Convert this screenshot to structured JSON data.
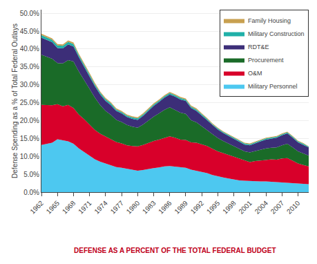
{
  "chart_data": {
    "type": "area",
    "stacked": true,
    "x": [
      1962,
      1963,
      1964,
      1965,
      1966,
      1967,
      1968,
      1969,
      1970,
      1971,
      1972,
      1973,
      1974,
      1975,
      1976,
      1977,
      1978,
      1979,
      1980,
      1981,
      1982,
      1983,
      1984,
      1985,
      1986,
      1987,
      1988,
      1989,
      1990,
      1991,
      1992,
      1993,
      1994,
      1995,
      1996,
      1997,
      1998,
      1999,
      2000,
      2001,
      2002,
      2003,
      2004,
      2005,
      2006,
      2007,
      2008,
      2009,
      2010,
      2011,
      2012
    ],
    "series": [
      {
        "name": "Military Personnel",
        "color": "#4DC8F0",
        "values": [
          13.2,
          13.5,
          13.8,
          14.8,
          14.5,
          14.2,
          13.5,
          12.2,
          11.2,
          10.2,
          9.2,
          8.5,
          8.0,
          7.6,
          7.0,
          6.8,
          6.5,
          6.3,
          6.0,
          6.2,
          6.5,
          6.7,
          6.9,
          7.2,
          7.3,
          7.1,
          6.9,
          6.8,
          6.3,
          6.0,
          5.6,
          5.3,
          4.8,
          4.4,
          4.1,
          3.8,
          3.5,
          3.3,
          3.2,
          3.1,
          3.1,
          3.0,
          3.0,
          2.9,
          2.8,
          2.8,
          2.7,
          2.5,
          2.4,
          2.3,
          2.2
        ]
      },
      {
        "name": "O&M",
        "color": "#D8002A",
        "values": [
          11.2,
          10.8,
          10.5,
          9.8,
          9.5,
          10.2,
          10.0,
          9.5,
          9.2,
          8.7,
          8.2,
          7.8,
          7.5,
          7.2,
          7.0,
          6.8,
          6.6,
          6.6,
          6.8,
          7.0,
          7.3,
          7.6,
          7.8,
          8.0,
          8.3,
          8.1,
          7.8,
          7.8,
          7.6,
          7.8,
          7.8,
          7.6,
          7.3,
          7.0,
          6.8,
          6.6,
          6.3,
          6.0,
          5.6,
          5.3,
          5.6,
          5.8,
          6.0,
          6.3,
          6.3,
          6.6,
          6.8,
          6.3,
          5.6,
          5.3,
          5.0
        ]
      },
      {
        "name": "Procurement",
        "color": "#1A6B28",
        "values": [
          14.0,
          13.5,
          13.0,
          11.5,
          12.0,
          12.5,
          13.0,
          12.0,
          11.0,
          10.0,
          9.0,
          8.0,
          7.2,
          6.8,
          6.2,
          6.0,
          5.7,
          5.4,
          5.2,
          5.7,
          6.2,
          6.8,
          7.3,
          7.8,
          8.1,
          7.8,
          7.5,
          7.3,
          6.2,
          5.7,
          5.0,
          4.4,
          4.0,
          3.7,
          3.4,
          3.2,
          3.0,
          2.8,
          2.6,
          2.7,
          2.8,
          3.0,
          3.2,
          3.2,
          3.4,
          3.7,
          4.0,
          3.7,
          3.4,
          3.2,
          3.0
        ]
      },
      {
        "name": "RDT&E",
        "color": "#3C2E78",
        "values": [
          4.8,
          4.7,
          4.6,
          4.2,
          4.2,
          4.4,
          4.2,
          4.0,
          3.7,
          3.4,
          3.2,
          3.0,
          2.8,
          2.7,
          2.5,
          2.4,
          2.2,
          2.2,
          2.2,
          2.4,
          2.7,
          3.0,
          3.2,
          3.4,
          3.6,
          3.7,
          3.7,
          3.6,
          3.4,
          3.2,
          3.0,
          2.8,
          2.6,
          2.4,
          2.2,
          2.1,
          2.0,
          2.0,
          1.9,
          2.0,
          2.2,
          2.4,
          2.5,
          2.6,
          2.7,
          2.8,
          2.9,
          2.7,
          2.5,
          2.4,
          2.3
        ]
      },
      {
        "name": "Military Construction",
        "color": "#20B0A8",
        "values": [
          0.7,
          0.7,
          0.7,
          0.7,
          0.7,
          0.7,
          0.7,
          0.6,
          0.6,
          0.6,
          0.5,
          0.5,
          0.5,
          0.5,
          0.4,
          0.4,
          0.4,
          0.4,
          0.4,
          0.4,
          0.4,
          0.4,
          0.4,
          0.4,
          0.4,
          0.4,
          0.4,
          0.4,
          0.4,
          0.4,
          0.4,
          0.4,
          0.3,
          0.3,
          0.3,
          0.3,
          0.3,
          0.3,
          0.3,
          0.3,
          0.3,
          0.3,
          0.3,
          0.3,
          0.3,
          0.3,
          0.3,
          0.3,
          0.3,
          0.3,
          0.2
        ]
      },
      {
        "name": "Family Housing",
        "color": "#C8A050",
        "values": [
          0.4,
          0.4,
          0.4,
          0.4,
          0.4,
          0.4,
          0.4,
          0.4,
          0.4,
          0.4,
          0.4,
          0.3,
          0.3,
          0.3,
          0.3,
          0.3,
          0.3,
          0.3,
          0.3,
          0.3,
          0.3,
          0.3,
          0.3,
          0.3,
          0.3,
          0.3,
          0.3,
          0.3,
          0.3,
          0.3,
          0.2,
          0.2,
          0.2,
          0.2,
          0.2,
          0.2,
          0.2,
          0.2,
          0.2,
          0.2,
          0.2,
          0.2,
          0.2,
          0.2,
          0.2,
          0.2,
          0.2,
          0.2,
          0.2,
          0.2,
          0.1
        ]
      }
    ],
    "ylabel": "Defense Spending as a % of Total Federal Outlays",
    "xlim": [
      1962,
      2012
    ],
    "xticks": [
      1962,
      1965,
      1968,
      1971,
      1974,
      1977,
      1980,
      1983,
      1986,
      1989,
      1992,
      1995,
      1998,
      2001,
      2004,
      2007,
      2010
    ],
    "ylim": [
      0,
      51
    ],
    "yticks": [
      {
        "value": 0,
        "label": "0.0%"
      },
      {
        "value": 5,
        "label": "5.0%"
      },
      {
        "value": 10,
        "label": "10.0%"
      },
      {
        "value": 15,
        "label": "15.0%"
      },
      {
        "value": 20,
        "label": "20.0%"
      },
      {
        "value": 25,
        "label": "25.0%"
      },
      {
        "value": 30,
        "label": "30.0%"
      },
      {
        "value": 35,
        "label": "35.0%"
      },
      {
        "value": 40,
        "label": "40.0%"
      },
      {
        "value": 45,
        "label": "45.0%"
      },
      {
        "value": 50,
        "label": "50.0%"
      }
    ],
    "grid": true,
    "legend": "upper right",
    "annotations": [
      {
        "text": "DEFENSE AS A PERCENT OF THE TOTAL FEDERAL BUDGET",
        "color": "#C0001A"
      }
    ]
  }
}
